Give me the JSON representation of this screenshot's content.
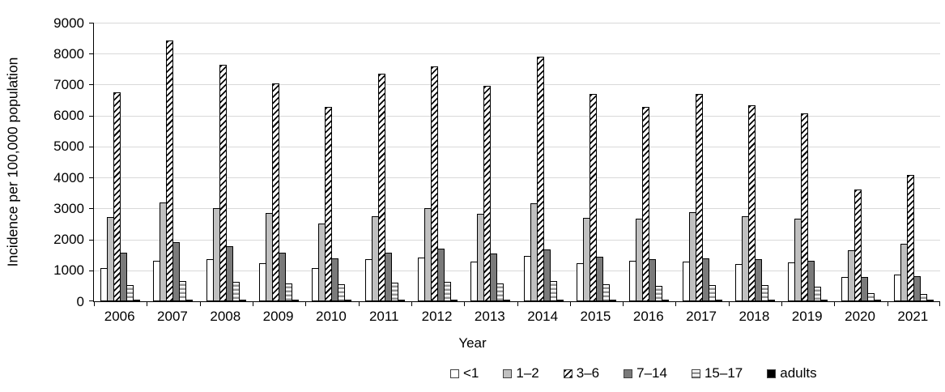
{
  "chart_data": {
    "type": "bar",
    "title": "",
    "xlabel": "Year",
    "ylabel": "Incidence per 100,000 population",
    "ylim": [
      0,
      9000
    ],
    "ytick_step": 1000,
    "grid": "horizontal-gridlines-on",
    "legend_position": "bottom",
    "categories": [
      "2006",
      "2007",
      "2008",
      "2009",
      "2010",
      "2011",
      "2012",
      "2013",
      "2014",
      "2015",
      "2016",
      "2017",
      "2018",
      "2019",
      "2020",
      "2021"
    ],
    "series": [
      {
        "name": "<1",
        "pattern": "white",
        "values": [
          1080,
          1310,
          1370,
          1230,
          1080,
          1360,
          1410,
          1280,
          1470,
          1240,
          1300,
          1290,
          1210,
          1250,
          780,
          870
        ]
      },
      {
        "name": "1–2",
        "pattern": "light-gray",
        "values": [
          2720,
          3180,
          3010,
          2850,
          2520,
          2760,
          3010,
          2830,
          3160,
          2690,
          2660,
          2870,
          2750,
          2680,
          1660,
          1870
        ]
      },
      {
        "name": "3–6",
        "pattern": "diagonal-hatch",
        "values": [
          6740,
          8420,
          7650,
          7050,
          6290,
          7360,
          7600,
          6970,
          7890,
          6710,
          6270,
          6700,
          6320,
          6080,
          3620,
          4090
        ]
      },
      {
        "name": "7–14",
        "pattern": "dark-gray",
        "values": [
          1580,
          1910,
          1780,
          1580,
          1390,
          1570,
          1700,
          1550,
          1680,
          1450,
          1370,
          1390,
          1360,
          1310,
          790,
          820
        ]
      },
      {
        "name": "15–17",
        "pattern": "horizontal-stripes",
        "values": [
          530,
          660,
          620,
          580,
          545,
          595,
          640,
          580,
          665,
          555,
          500,
          525,
          530,
          470,
          270,
          240
        ]
      },
      {
        "name": "adults",
        "pattern": "black",
        "values": [
          35,
          35,
          35,
          30,
          30,
          30,
          30,
          30,
          30,
          30,
          30,
          30,
          25,
          25,
          20,
          20
        ]
      }
    ]
  },
  "colors": {
    "background": "#ffffff",
    "axis": "#000000",
    "gridline": "#d9d9d9",
    "bar_outline": "#000000",
    "light_gray": "#c0c0c0",
    "dark_gray": "#7a7a7a",
    "stripe_gray": "#969696",
    "black": "#000000",
    "white": "#ffffff"
  }
}
